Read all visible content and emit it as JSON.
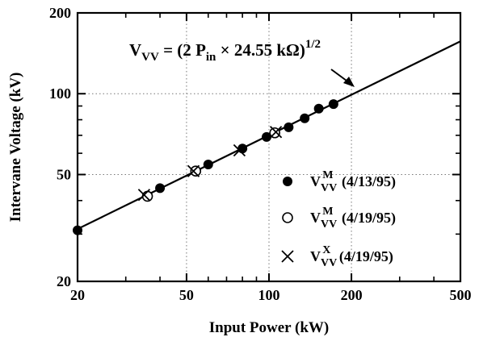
{
  "chart_data": {
    "type": "scatter",
    "xscale": "log",
    "yscale": "log",
    "xlim": [
      20,
      500
    ],
    "ylim": [
      20,
      200
    ],
    "xlabel": "Input Power (kW)",
    "ylabel": "Intervane Voltage (kV)",
    "x_ticks": [
      20,
      50,
      100,
      200,
      500
    ],
    "y_ticks": [
      20,
      50,
      100,
      200
    ],
    "x_tick_labels": [
      "20",
      "50",
      "100",
      "200",
      "500"
    ],
    "y_tick_labels": [
      "20",
      "50",
      "100",
      "200"
    ],
    "grid": "dotted",
    "legend_position": "bottom-right",
    "fit_line": {
      "expression": "V = (2 × P × 24.55)^(1/2)",
      "coefficient_kohm": 24.55,
      "x_range": [
        20,
        500
      ],
      "label": {
        "v": "V",
        "v_sub": "VV",
        "eq": " = (2 ",
        "p": "P",
        "p_sub": "in",
        "rest": " × 24.55  kΩ)",
        "exp": "1/2"
      }
    },
    "series": [
      {
        "name": "VVVM (4/13/95)",
        "name_parts": {
          "main": "V",
          "sub": "VV",
          "sup": "M",
          "suffix": " (4/13/95)"
        },
        "marker": "filled-circle",
        "color": "#000000",
        "x": [
          20,
          40,
          60,
          80,
          98,
          118,
          135,
          152,
          172
        ],
        "y": [
          31,
          44.5,
          54.5,
          62.5,
          69,
          75,
          81,
          88,
          91.5
        ]
      },
      {
        "name": "VVVM (4/19/95)",
        "name_parts": {
          "main": "V",
          "sub": "VV",
          "sup": "M",
          "suffix": " (4/19/95)"
        },
        "marker": "open-circle",
        "color": "#000000",
        "x": [
          36,
          54,
          105
        ],
        "y": [
          41.5,
          51.5,
          71.5
        ]
      },
      {
        "name": "VVVX (4/19/95)",
        "name_parts": {
          "main": "V",
          "sub": "VV",
          "sup": "X",
          "suffix": " (4/19/95)"
        },
        "marker": "x",
        "color": "#000000",
        "x": [
          35,
          53,
          78,
          106
        ],
        "y": [
          42,
          51.5,
          61.5,
          72
        ]
      }
    ]
  }
}
